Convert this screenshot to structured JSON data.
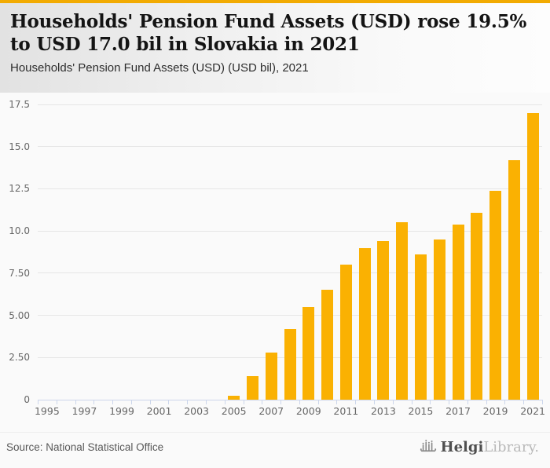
{
  "header": {
    "title": "Households' Pension Fund Assets (USD) rose 19.5% to USD 17.0 bil in Slovakia in 2021",
    "subtitle": "Households' Pension Fund Assets (USD) (USD bil), 2021"
  },
  "chart_data": {
    "type": "bar",
    "title": "Households' Pension Fund Assets (USD) rose 19.5% to USD 17.0 bil in Slovakia in 2021",
    "subtitle": "Households' Pension Fund Assets (USD) (USD bil), 2021",
    "categories": [
      1995,
      1996,
      1997,
      1998,
      1999,
      2000,
      2001,
      2002,
      2003,
      2004,
      2005,
      2006,
      2007,
      2008,
      2009,
      2010,
      2011,
      2012,
      2013,
      2014,
      2015,
      2016,
      2017,
      2018,
      2019,
      2020,
      2021
    ],
    "values": [
      null,
      null,
      null,
      null,
      null,
      null,
      null,
      null,
      null,
      null,
      0.25,
      1.4,
      2.8,
      4.2,
      5.5,
      6.5,
      8.0,
      9.0,
      9.4,
      10.5,
      8.6,
      9.5,
      10.4,
      11.1,
      12.4,
      14.2,
      17.0
    ],
    "xlabel": "",
    "ylabel": "",
    "ylim": [
      0,
      17.5
    ],
    "yticks": [
      0,
      2.5,
      5,
      7.5,
      10,
      12.5,
      15,
      17.5
    ],
    "ytick_labels": [
      "0",
      "2.50",
      "5.00",
      "7.50",
      "10.0",
      "12.5",
      "15.0",
      "17.5"
    ],
    "xtick_labeled_years": [
      1995,
      1997,
      1999,
      2001,
      2003,
      2005,
      2007,
      2009,
      2011,
      2013,
      2015,
      2017,
      2019,
      2021
    ],
    "grid": true,
    "legend": false,
    "bar_color": "#FAB102"
  },
  "colors": {
    "accent_strip": "#F2AB02",
    "bar": "#FAB102",
    "gridline": "#E6E6E6",
    "axis": "#CCD6EB",
    "axis_label": "#666666"
  },
  "footer": {
    "source": "Source: National Statistical Office",
    "brand": {
      "icon": "bar-chart-logo-icon",
      "name_bold": "Helgi",
      "name_light": "Library."
    }
  }
}
